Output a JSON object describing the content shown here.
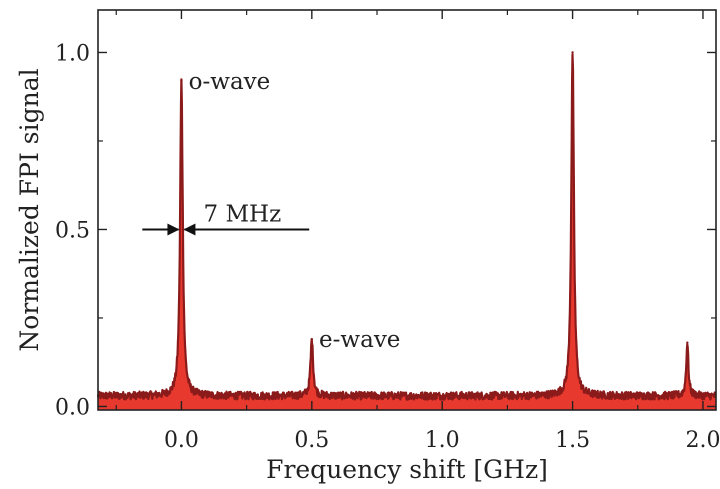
{
  "chart_data": {
    "type": "line",
    "title": "",
    "xlabel": "Frequency shift [GHz]",
    "ylabel": "Normalized FPI signal",
    "xlim": [
      -0.32,
      2.05
    ],
    "ylim": [
      -0.01,
      1.12
    ],
    "grid": false,
    "x_ticks": [
      0.0,
      0.5,
      1.0,
      1.5,
      2.0
    ],
    "x_tick_labels": [
      "0.0",
      "0.5",
      "1.0",
      "1.5",
      "2.0"
    ],
    "y_ticks": [
      0.0,
      0.5,
      1.0
    ],
    "y_tick_labels": [
      "0.0",
      "0.5",
      "1.0"
    ],
    "series": [
      {
        "color": "#8b1a1a",
        "fill_color": "#e8392f",
        "baseline": 0.03,
        "peaks": [
          {
            "x": 0.0,
            "y": 0.92
          },
          {
            "x": 0.5,
            "y": 0.19
          },
          {
            "x": 1.5,
            "y": 1.0
          },
          {
            "x": 1.94,
            "y": 0.18
          }
        ]
      }
    ],
    "annotations": [
      {
        "text": "o-wave",
        "x": 0.02,
        "y": 0.92
      },
      {
        "text": "e-wave",
        "x": 0.52,
        "y": 0.19
      },
      {
        "text": "7 MHz",
        "x": 0.1,
        "y": 0.5
      }
    ]
  }
}
